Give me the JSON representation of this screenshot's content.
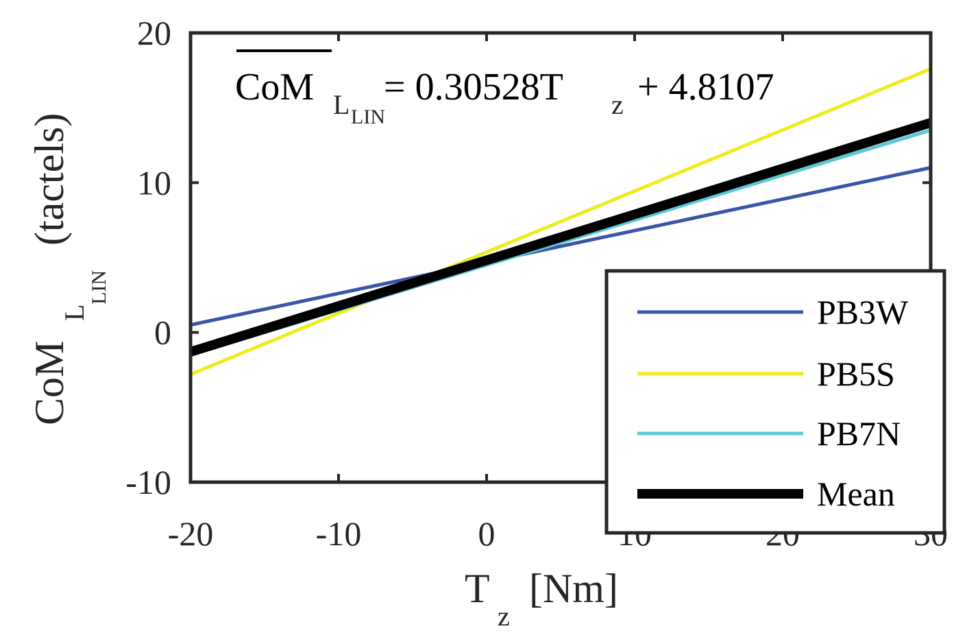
{
  "chart_data": {
    "type": "line",
    "x_range": [
      -20,
      30
    ],
    "ylim": [
      -10,
      20
    ],
    "x_ticks": [
      -20,
      -10,
      0,
      10,
      20,
      30
    ],
    "y_ticks": [
      -10,
      0,
      10,
      20
    ],
    "x_tick_labels": [
      "-20",
      "-10",
      "0",
      "10",
      "20",
      "30"
    ],
    "y_tick_labels": [
      "-10",
      "0",
      "10",
      "20"
    ],
    "xlabel": {
      "main": "T",
      "sub": "z",
      "unit": "[Nm]"
    },
    "ylabel": {
      "main": "CoM",
      "sub": "L",
      "subsub": "LIN",
      "unit": "(tactels)"
    },
    "annotation": {
      "lhs_main": "CoM",
      "lhs_sub": "L",
      "lhs_subsub": "LIN",
      "equals": "= 0.30528T",
      "tz_sub": "z",
      "rest": "+ 4.8107"
    },
    "series": [
      {
        "name": "PB3W",
        "color": "#3a55a8",
        "slope": 0.21,
        "intercept": 4.7,
        "x": [
          -20,
          30
        ],
        "y": [
          0.5,
          11.0
        ]
      },
      {
        "name": "PB5S",
        "color": "#eded1e",
        "slope": 0.4,
        "intercept": 5.4,
        "x": [
          -20,
          30
        ],
        "y": [
          -2.8,
          17.6
        ]
      },
      {
        "name": "PB7N",
        "color": "#5cc8d6",
        "slope": 0.3,
        "intercept": 4.6,
        "x": [
          -20,
          30
        ],
        "y": [
          -1.5,
          13.5
        ]
      },
      {
        "name": "Mean",
        "color": "#000000",
        "slope": 0.30528,
        "intercept": 4.8107,
        "x": [
          -20,
          30
        ],
        "y": [
          -1.3,
          14.0
        ]
      }
    ],
    "legend_position": "bottom-right"
  }
}
